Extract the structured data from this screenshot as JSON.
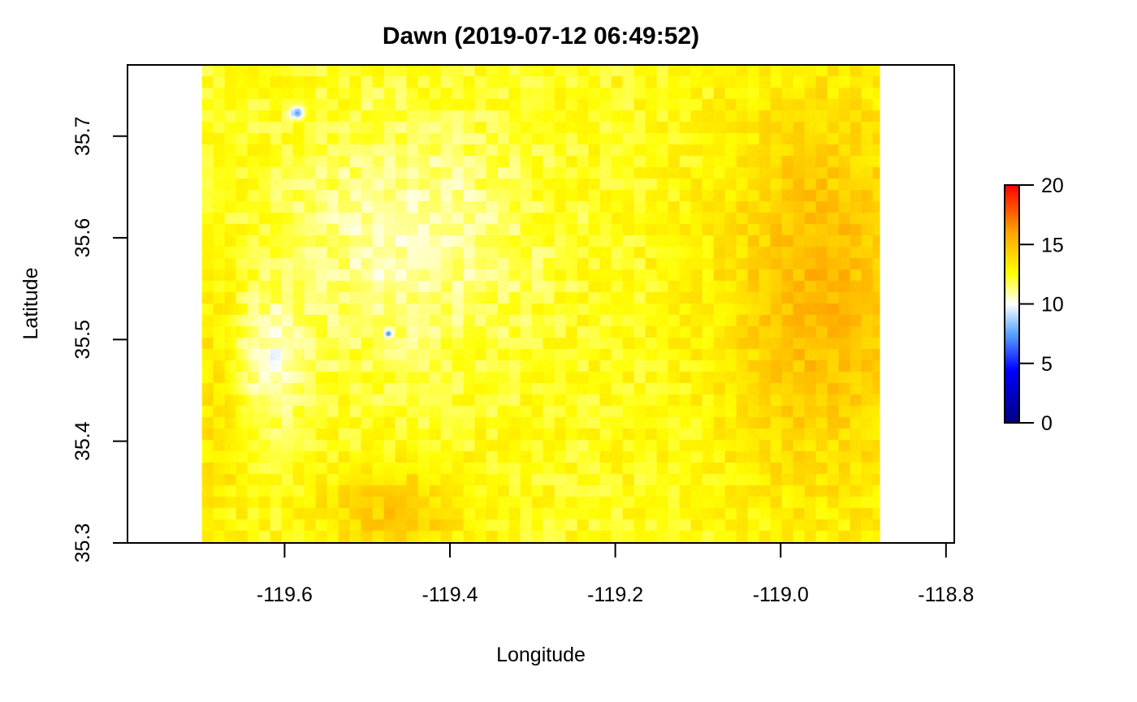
{
  "chart_data": {
    "type": "heatmap",
    "title": "Dawn (2019-07-12 06:49:52)",
    "xlabel": "Longitude",
    "ylabel": "Latitude",
    "xlim": [
      -119.79,
      -118.79
    ],
    "ylim": [
      35.3,
      35.77
    ],
    "data_extent": {
      "x": [
        -119.7,
        -118.88
      ],
      "y": [
        35.3,
        35.77
      ]
    },
    "x_ticks": [
      -119.6,
      -119.4,
      -119.2,
      -119.0,
      -118.8
    ],
    "x_tick_labels": [
      "-119.6",
      "-119.4",
      "-119.2",
      "-119.0",
      "-118.8"
    ],
    "y_ticks": [
      35.3,
      35.4,
      35.5,
      35.6,
      35.7
    ],
    "y_tick_labels": [
      "35.3",
      "35.4",
      "35.5",
      "35.6",
      "35.7"
    ],
    "colorbar": {
      "range": [
        0,
        20
      ],
      "ticks": [
        0,
        5,
        10,
        15,
        20
      ],
      "tick_labels": [
        "0",
        "5",
        "10",
        "15",
        "20"
      ],
      "colors": [
        "#00007f",
        "#0000ff",
        "#5fa8ff",
        "#ffffff",
        "#ffff00",
        "#ffa500",
        "#ff0000"
      ]
    },
    "grid": false,
    "legend": "right",
    "features": [
      {
        "type": "warm-region",
        "center": [
          -118.95,
          35.55
        ],
        "spread": [
          0.12,
          0.2
        ],
        "value": 15.2
      },
      {
        "type": "warm-region",
        "center": [
          -119.47,
          35.33
        ],
        "spread": [
          0.09,
          0.045
        ],
        "value": 14.5
      },
      {
        "type": "warm-region",
        "center": [
          -119.68,
          35.45
        ],
        "spread": [
          0.03,
          0.12
        ],
        "value": 14.0
      },
      {
        "type": "cool-region",
        "center": [
          -119.45,
          35.6
        ],
        "spread": [
          0.15,
          0.12
        ],
        "value": 10.8
      },
      {
        "type": "cool-region",
        "center": [
          -119.62,
          35.48
        ],
        "spread": [
          0.05,
          0.06
        ],
        "value": 10.6
      },
      {
        "type": "cool-spot",
        "center": [
          -119.585,
          35.723
        ],
        "spread": [
          0.008,
          0.006
        ],
        "value": 7.5
      },
      {
        "type": "cool-spot",
        "center": [
          -119.475,
          35.506
        ],
        "spread": [
          0.004,
          0.003
        ],
        "value": 8.5
      }
    ],
    "background_value": 12.5
  }
}
